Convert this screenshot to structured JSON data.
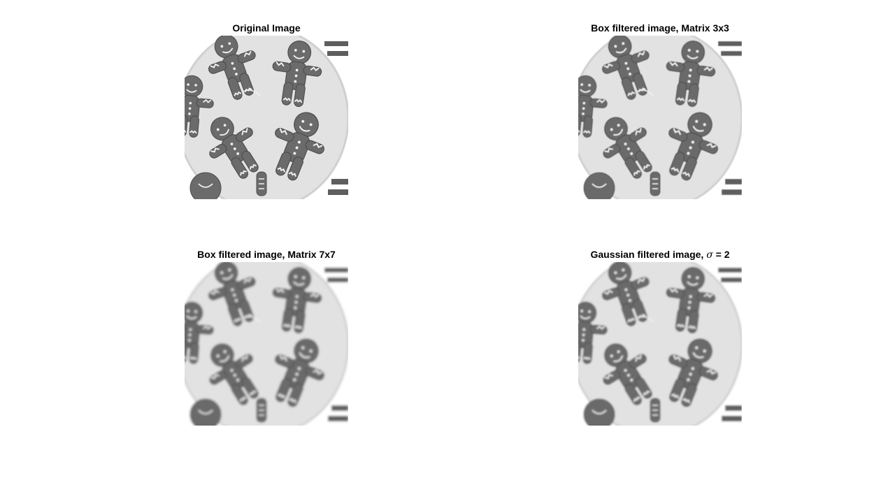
{
  "figure": {
    "panels": [
      {
        "title": "Original Image",
        "filter": "none",
        "blur": 0
      },
      {
        "title": "Box filtered image, Matrix 3x3",
        "filter": "box",
        "blur": 0.6
      },
      {
        "title": "Box filtered image, Matrix 7x7",
        "filter": "box",
        "blur": 1.6
      },
      {
        "title_prefix": "Gaussian filtered image, ",
        "title_symbol": "σ",
        "title_suffix": " = 2",
        "filter": "gaussian",
        "blur": 1.3
      }
    ]
  },
  "colors": {
    "background": "#ffffff",
    "plate": "#e2e2e2",
    "cookie": "#6b6b6b",
    "icing": "#f2f2f2",
    "stripe_dark": "#5e5e5e"
  }
}
